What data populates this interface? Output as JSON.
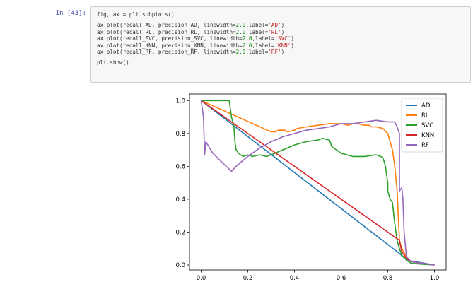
{
  "cell": {
    "prompt": "In [43]:",
    "code_lines": [
      [
        {
          "t": "fig, ax = plt.subplots()"
        }
      ],
      [],
      [
        {
          "t": "ax.plot(recall_AD, precision_AD, linewidth="
        },
        {
          "t": "2.0",
          "c": "num"
        },
        {
          "t": ",label="
        },
        {
          "t": "'AD'",
          "c": "str"
        },
        {
          "t": ")"
        }
      ],
      [
        {
          "t": "ax.plot(recall_RL, precision_RL, linewidth="
        },
        {
          "t": "2.0",
          "c": "num"
        },
        {
          "t": ",label="
        },
        {
          "t": "'RL'",
          "c": "str"
        },
        {
          "t": ")"
        }
      ],
      [
        {
          "t": "ax.plot(recall_SVC, precision_SVC, linewidth="
        },
        {
          "t": "2.0",
          "c": "num"
        },
        {
          "t": ",label="
        },
        {
          "t": "'SVC'",
          "c": "str"
        },
        {
          "t": ")"
        }
      ],
      [
        {
          "t": "ax.plot(recall_KNN, precision_KNN, linewidth="
        },
        {
          "t": "2.0",
          "c": "num"
        },
        {
          "t": ",label="
        },
        {
          "t": "'KNN'",
          "c": "str"
        },
        {
          "t": ")"
        }
      ],
      [
        {
          "t": "ax.plot(recall_RF, precision_RF, linewidth="
        },
        {
          "t": "2.0",
          "c": "num"
        },
        {
          "t": ",label="
        },
        {
          "t": "'RF'",
          "c": "str"
        },
        {
          "t": ")"
        }
      ],
      [],
      [
        {
          "t": "plt.show()"
        }
      ]
    ]
  },
  "chart_data": {
    "type": "line",
    "title": "",
    "xlabel": "",
    "ylabel": "",
    "xlim": [
      -0.05,
      1.05
    ],
    "ylim": [
      -0.03,
      1.04
    ],
    "xticks": [
      0.0,
      0.2,
      0.4,
      0.6,
      0.8,
      1.0
    ],
    "xtick_labels": [
      "0.0",
      "0.2",
      "0.4",
      "0.6",
      "0.8",
      "1.0"
    ],
    "yticks": [
      0.0,
      0.2,
      0.4,
      0.6,
      0.8,
      1.0
    ],
    "ytick_labels": [
      "0.0",
      "0.2",
      "0.4",
      "0.6",
      "0.8",
      "1.0"
    ],
    "grid": false,
    "legend_position": "top-right",
    "series": [
      {
        "name": "AD",
        "color": "#1f77b4",
        "x": [
          0.0,
          0.85,
          0.88,
          1.0
        ],
        "y": [
          1.0,
          0.07,
          0.03,
          0.0
        ]
      },
      {
        "name": "RL",
        "color": "#ff7f0e",
        "x": [
          0.0,
          0.3,
          0.32,
          0.33,
          0.36,
          0.37,
          0.4,
          0.41,
          0.45,
          0.5,
          0.55,
          0.6,
          0.63,
          0.65,
          0.67,
          0.7,
          0.72,
          0.73,
          0.75,
          0.78,
          0.8,
          0.81,
          0.82,
          0.83,
          0.84,
          0.845,
          0.85,
          0.86,
          0.88,
          0.9,
          0.95,
          1.0
        ],
        "y": [
          1.0,
          0.81,
          0.81,
          0.82,
          0.82,
          0.81,
          0.82,
          0.83,
          0.84,
          0.85,
          0.86,
          0.86,
          0.85,
          0.86,
          0.86,
          0.85,
          0.85,
          0.84,
          0.84,
          0.83,
          0.8,
          0.75,
          0.7,
          0.6,
          0.45,
          0.3,
          0.15,
          0.1,
          0.05,
          0.02,
          0.01,
          0.0
        ]
      },
      {
        "name": "SVC",
        "color": "#2ca02c",
        "x": [
          0.0,
          0.12,
          0.125,
          0.13,
          0.14,
          0.145,
          0.15,
          0.16,
          0.17,
          0.18,
          0.2,
          0.22,
          0.25,
          0.28,
          0.3,
          0.35,
          0.4,
          0.45,
          0.5,
          0.52,
          0.55,
          0.56,
          0.58,
          0.6,
          0.65,
          0.7,
          0.75,
          0.77,
          0.78,
          0.79,
          0.8,
          0.8,
          0.81,
          0.82,
          0.83,
          0.84,
          0.85,
          0.86,
          0.88,
          0.9,
          0.95,
          1.0
        ],
        "y": [
          1.0,
          1.0,
          0.95,
          0.9,
          0.85,
          0.75,
          0.7,
          0.68,
          0.67,
          0.66,
          0.67,
          0.66,
          0.67,
          0.66,
          0.67,
          0.7,
          0.73,
          0.75,
          0.76,
          0.77,
          0.76,
          0.72,
          0.7,
          0.68,
          0.66,
          0.66,
          0.67,
          0.66,
          0.65,
          0.6,
          0.5,
          0.45,
          0.4,
          0.38,
          0.25,
          0.15,
          0.1,
          0.06,
          0.03,
          0.01,
          0.005,
          0.0
        ]
      },
      {
        "name": "KNN",
        "color": "#d62728",
        "x": [
          0.0,
          0.85,
          0.86,
          0.88,
          0.9,
          1.0
        ],
        "y": [
          1.0,
          0.15,
          0.08,
          0.04,
          0.02,
          0.0
        ]
      },
      {
        "name": "RF",
        "color": "#9467bd",
        "x": [
          0.0,
          0.01,
          0.015,
          0.02,
          0.05,
          0.1,
          0.13,
          0.15,
          0.2,
          0.25,
          0.3,
          0.35,
          0.4,
          0.45,
          0.5,
          0.55,
          0.6,
          0.65,
          0.7,
          0.75,
          0.8,
          0.83,
          0.84,
          0.85,
          0.85,
          0.86,
          0.865,
          0.87,
          0.88,
          0.9,
          0.95,
          1.0
        ],
        "y": [
          1.0,
          0.9,
          0.67,
          0.75,
          0.68,
          0.61,
          0.57,
          0.6,
          0.66,
          0.71,
          0.75,
          0.78,
          0.8,
          0.82,
          0.83,
          0.84,
          0.86,
          0.86,
          0.87,
          0.88,
          0.87,
          0.87,
          0.84,
          0.8,
          0.45,
          0.47,
          0.4,
          0.2,
          0.05,
          0.02,
          0.01,
          0.0
        ]
      }
    ]
  }
}
